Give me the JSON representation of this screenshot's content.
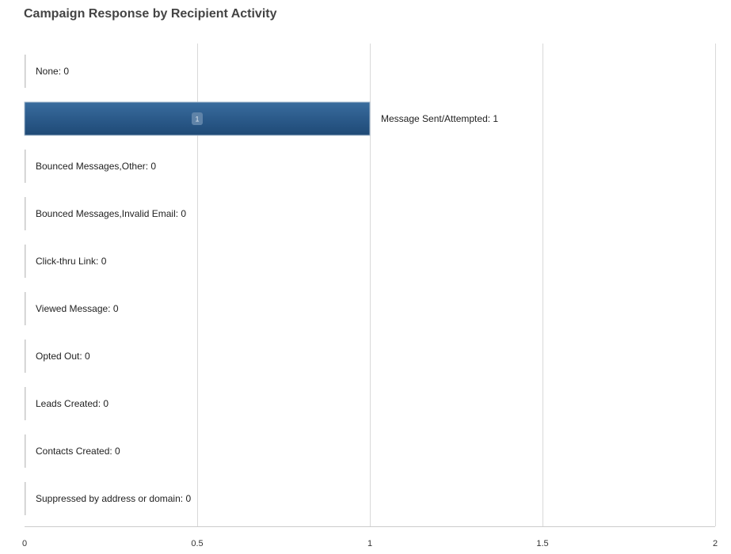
{
  "chart_data": {
    "type": "bar",
    "orientation": "horizontal",
    "title": "Campaign Response by Recipient Activity",
    "xlabel": "",
    "ylabel": "",
    "xlim": [
      0,
      2
    ],
    "x_ticks": [
      "0",
      "0.5",
      "1",
      "1.5",
      "2"
    ],
    "x_tick_values": [
      0,
      0.5,
      1,
      1.5,
      2
    ],
    "grid": true,
    "categories": [
      "None",
      "Message Sent/Attempted",
      "Bounced Messages,Other",
      "Bounced Messages,Invalid Email",
      "Click-thru Link",
      "Viewed Message",
      "Opted Out",
      "Leads Created",
      "Contacts Created",
      "Suppressed by address or domain"
    ],
    "values": [
      0,
      1,
      0,
      0,
      0,
      0,
      0,
      0,
      0,
      0
    ],
    "bar_labels": [
      "None: 0",
      "Message Sent/Attempted: 1",
      "Bounced Messages,Other: 0",
      "Bounced Messages,Invalid Email: 0",
      "Click-thru Link: 0",
      "Viewed Message: 0",
      "Opted Out: 0",
      "Leads Created: 0",
      "Contacts Created: 0",
      "Suppressed by address or domain: 0"
    ],
    "value_badges": [
      "",
      "1",
      "",
      "",
      "",
      "",
      "",
      "",
      "",
      ""
    ],
    "bar_color": "#2b5a8a",
    "zero_bar_color": "#c8c8c8"
  }
}
